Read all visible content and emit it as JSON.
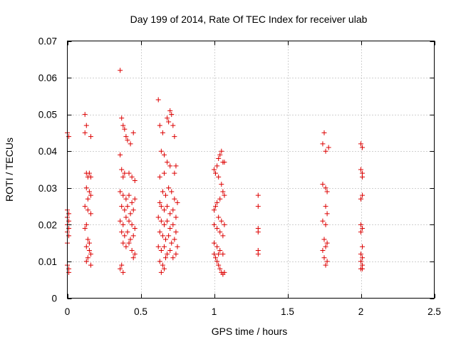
{
  "chart_data": {
    "type": "scatter",
    "title": "Day 199 of 2014, Rate Of TEC Index for receiver ulab",
    "xlabel": "GPS time / hours",
    "ylabel": "ROTI / TECUs",
    "xlim": [
      0,
      2.5
    ],
    "ylim": [
      0,
      0.07
    ],
    "grid": true,
    "marker": "+",
    "color": "#dd0000",
    "xticks": [
      0,
      0.5,
      1,
      1.5,
      2,
      2.5
    ],
    "xtick_labels": [
      "0",
      "0.5",
      "1",
      "1.5",
      "2",
      "2.5"
    ],
    "yticks": [
      0,
      0.01,
      0.02,
      0.03,
      0.04,
      0.05,
      0.06,
      0.07
    ],
    "ytick_labels": [
      "0",
      "0.01",
      "0.02",
      "0.03",
      "0.04",
      "0.05",
      "0.06",
      "0.07"
    ],
    "series": [
      {
        "name": "ROTI",
        "points": [
          [
            0.0,
            0.045
          ],
          [
            0.01,
            0.044
          ],
          [
            0.0,
            0.024
          ],
          [
            0.01,
            0.023
          ],
          [
            0.0,
            0.022
          ],
          [
            0.01,
            0.021
          ],
          [
            0.0,
            0.02
          ],
          [
            0.01,
            0.019
          ],
          [
            0.0,
            0.018
          ],
          [
            0.01,
            0.017
          ],
          [
            0.0,
            0.015
          ],
          [
            0.0,
            0.009
          ],
          [
            0.01,
            0.008
          ],
          [
            0.01,
            0.007
          ],
          [
            0.12,
            0.05
          ],
          [
            0.13,
            0.047
          ],
          [
            0.12,
            0.045
          ],
          [
            0.13,
            0.034
          ],
          [
            0.14,
            0.033
          ],
          [
            0.15,
            0.034
          ],
          [
            0.16,
            0.033
          ],
          [
            0.13,
            0.03
          ],
          [
            0.15,
            0.029
          ],
          [
            0.16,
            0.028
          ],
          [
            0.14,
            0.027
          ],
          [
            0.12,
            0.025
          ],
          [
            0.14,
            0.024
          ],
          [
            0.16,
            0.023
          ],
          [
            0.13,
            0.02
          ],
          [
            0.12,
            0.019
          ],
          [
            0.14,
            0.016
          ],
          [
            0.15,
            0.015
          ],
          [
            0.13,
            0.014
          ],
          [
            0.15,
            0.013
          ],
          [
            0.16,
            0.012
          ],
          [
            0.14,
            0.011
          ],
          [
            0.13,
            0.01
          ],
          [
            0.16,
            0.009
          ],
          [
            0.16,
            0.044
          ],
          [
            0.36,
            0.062
          ],
          [
            0.37,
            0.049
          ],
          [
            0.38,
            0.047
          ],
          [
            0.39,
            0.046
          ],
          [
            0.36,
            0.039
          ],
          [
            0.4,
            0.044
          ],
          [
            0.41,
            0.043
          ],
          [
            0.43,
            0.042
          ],
          [
            0.45,
            0.045
          ],
          [
            0.37,
            0.035
          ],
          [
            0.38,
            0.033
          ],
          [
            0.39,
            0.034
          ],
          [
            0.42,
            0.034
          ],
          [
            0.44,
            0.033
          ],
          [
            0.46,
            0.032
          ],
          [
            0.36,
            0.029
          ],
          [
            0.38,
            0.028
          ],
          [
            0.4,
            0.027
          ],
          [
            0.42,
            0.028
          ],
          [
            0.44,
            0.026
          ],
          [
            0.46,
            0.027
          ],
          [
            0.37,
            0.025
          ],
          [
            0.39,
            0.024
          ],
          [
            0.41,
            0.025
          ],
          [
            0.43,
            0.023
          ],
          [
            0.45,
            0.024
          ],
          [
            0.36,
            0.021
          ],
          [
            0.38,
            0.02
          ],
          [
            0.4,
            0.022
          ],
          [
            0.42,
            0.021
          ],
          [
            0.44,
            0.02
          ],
          [
            0.46,
            0.019
          ],
          [
            0.37,
            0.018
          ],
          [
            0.39,
            0.017
          ],
          [
            0.41,
            0.018
          ],
          [
            0.43,
            0.016
          ],
          [
            0.45,
            0.017
          ],
          [
            0.38,
            0.015
          ],
          [
            0.4,
            0.014
          ],
          [
            0.42,
            0.015
          ],
          [
            0.44,
            0.013
          ],
          [
            0.46,
            0.012
          ],
          [
            0.45,
            0.011
          ],
          [
            0.37,
            0.009
          ],
          [
            0.36,
            0.008
          ],
          [
            0.38,
            0.007
          ],
          [
            0.62,
            0.054
          ],
          [
            0.63,
            0.047
          ],
          [
            0.65,
            0.045
          ],
          [
            0.64,
            0.04
          ],
          [
            0.66,
            0.039
          ],
          [
            0.68,
            0.049
          ],
          [
            0.69,
            0.048
          ],
          [
            0.7,
            0.051
          ],
          [
            0.71,
            0.05
          ],
          [
            0.72,
            0.047
          ],
          [
            0.73,
            0.044
          ],
          [
            0.74,
            0.036
          ],
          [
            0.73,
            0.034
          ],
          [
            0.63,
            0.033
          ],
          [
            0.66,
            0.034
          ],
          [
            0.68,
            0.037
          ],
          [
            0.7,
            0.036
          ],
          [
            0.65,
            0.029
          ],
          [
            0.67,
            0.028
          ],
          [
            0.69,
            0.03
          ],
          [
            0.71,
            0.029
          ],
          [
            0.73,
            0.027
          ],
          [
            0.75,
            0.026
          ],
          [
            0.63,
            0.026
          ],
          [
            0.64,
            0.025
          ],
          [
            0.66,
            0.024
          ],
          [
            0.68,
            0.025
          ],
          [
            0.7,
            0.023
          ],
          [
            0.72,
            0.024
          ],
          [
            0.74,
            0.022
          ],
          [
            0.62,
            0.022
          ],
          [
            0.64,
            0.021
          ],
          [
            0.66,
            0.02
          ],
          [
            0.68,
            0.021
          ],
          [
            0.7,
            0.019
          ],
          [
            0.72,
            0.02
          ],
          [
            0.74,
            0.018
          ],
          [
            0.63,
            0.018
          ],
          [
            0.65,
            0.017
          ],
          [
            0.67,
            0.016
          ],
          [
            0.69,
            0.017
          ],
          [
            0.71,
            0.015
          ],
          [
            0.73,
            0.016
          ],
          [
            0.75,
            0.014
          ],
          [
            0.62,
            0.014
          ],
          [
            0.64,
            0.013
          ],
          [
            0.66,
            0.014
          ],
          [
            0.68,
            0.012
          ],
          [
            0.7,
            0.013
          ],
          [
            0.72,
            0.011
          ],
          [
            0.74,
            0.012
          ],
          [
            0.63,
            0.01
          ],
          [
            0.65,
            0.009
          ],
          [
            0.67,
            0.011
          ],
          [
            0.64,
            0.007
          ],
          [
            0.66,
            0.008
          ],
          [
            1.0,
            0.035
          ],
          [
            1.01,
            0.034
          ],
          [
            1.02,
            0.036
          ],
          [
            1.03,
            0.038
          ],
          [
            1.04,
            0.039
          ],
          [
            1.05,
            0.04
          ],
          [
            1.06,
            0.037
          ],
          [
            1.07,
            0.037
          ],
          [
            1.03,
            0.033
          ],
          [
            1.05,
            0.031
          ],
          [
            1.06,
            0.029
          ],
          [
            1.07,
            0.028
          ],
          [
            1.02,
            0.026
          ],
          [
            1.04,
            0.027
          ],
          [
            1.0,
            0.024
          ],
          [
            1.01,
            0.025
          ],
          [
            1.03,
            0.022
          ],
          [
            1.05,
            0.021
          ],
          [
            1.07,
            0.02
          ],
          [
            1.0,
            0.02
          ],
          [
            1.02,
            0.019
          ],
          [
            1.04,
            0.018
          ],
          [
            1.06,
            0.017
          ],
          [
            1.0,
            0.015
          ],
          [
            1.02,
            0.014
          ],
          [
            1.04,
            0.013
          ],
          [
            1.06,
            0.012
          ],
          [
            1.0,
            0.012
          ],
          [
            1.01,
            0.011
          ],
          [
            1.02,
            0.01
          ],
          [
            1.03,
            0.009
          ],
          [
            1.04,
            0.008
          ],
          [
            1.05,
            0.007
          ],
          [
            1.06,
            0.0065
          ],
          [
            1.07,
            0.007
          ],
          [
            1.03,
            0.012
          ],
          [
            1.3,
            0.028
          ],
          [
            1.3,
            0.025
          ],
          [
            1.3,
            0.019
          ],
          [
            1.3,
            0.018
          ],
          [
            1.3,
            0.013
          ],
          [
            1.3,
            0.012
          ],
          [
            1.75,
            0.045
          ],
          [
            1.74,
            0.042
          ],
          [
            1.76,
            0.04
          ],
          [
            1.78,
            0.041
          ],
          [
            1.74,
            0.031
          ],
          [
            1.76,
            0.03
          ],
          [
            1.77,
            0.029
          ],
          [
            1.76,
            0.025
          ],
          [
            1.77,
            0.023
          ],
          [
            1.74,
            0.021
          ],
          [
            1.76,
            0.02
          ],
          [
            1.75,
            0.016
          ],
          [
            1.77,
            0.015
          ],
          [
            1.74,
            0.013
          ],
          [
            1.76,
            0.014
          ],
          [
            1.75,
            0.011
          ],
          [
            1.77,
            0.01
          ],
          [
            1.76,
            0.009
          ],
          [
            2.0,
            0.042
          ],
          [
            2.01,
            0.041
          ],
          [
            2.0,
            0.035
          ],
          [
            2.01,
            0.034
          ],
          [
            2.01,
            0.033
          ],
          [
            2.0,
            0.027
          ],
          [
            2.01,
            0.028
          ],
          [
            2.0,
            0.02
          ],
          [
            2.01,
            0.019
          ],
          [
            2.0,
            0.018
          ],
          [
            2.01,
            0.014
          ],
          [
            2.0,
            0.012
          ],
          [
            2.01,
            0.011
          ],
          [
            2.0,
            0.01
          ],
          [
            2.01,
            0.009
          ],
          [
            2.0,
            0.008
          ],
          [
            2.01,
            0.008
          ]
        ]
      }
    ]
  }
}
